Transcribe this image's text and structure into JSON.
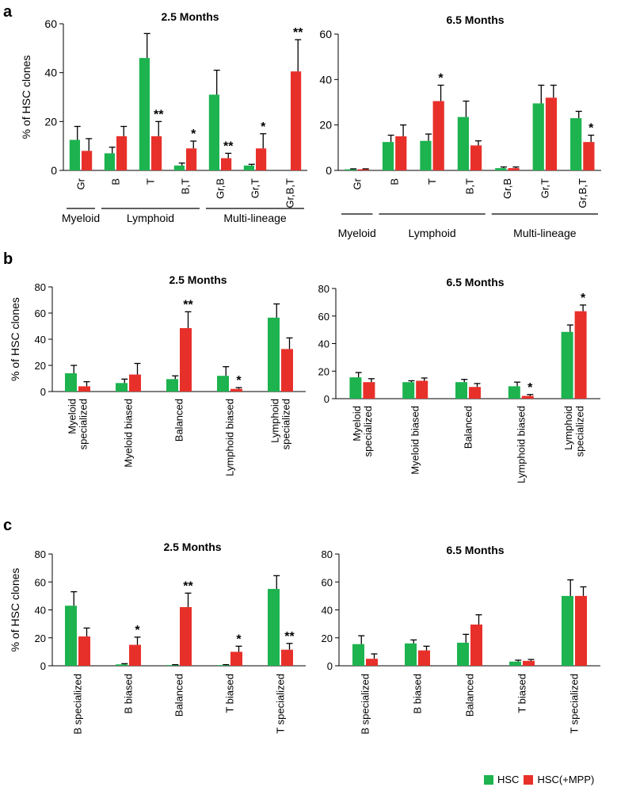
{
  "colors": {
    "hsc": "#1db34f",
    "mpp": "#e8302a"
  },
  "legend": {
    "hsc": "HSC",
    "mpp": "HSC(+MPP)"
  },
  "panel_labels": [
    "a",
    "b",
    "c"
  ],
  "chart_data": [
    {
      "id": "a1",
      "type": "bar",
      "panel": "a",
      "title": "2.5 Months",
      "ylabel": "% of HSC clones",
      "ylim": [
        0,
        60
      ],
      "yticks": [
        0,
        20,
        40,
        60
      ],
      "categories": [
        "Gr",
        "B",
        "T",
        "B,T",
        "Gr,B",
        "Gr,T",
        "Gr,B,T"
      ],
      "series": [
        {
          "name": "HSC",
          "values": [
            12.5,
            7,
            46,
            2,
            31,
            2,
            0
          ],
          "errors": [
            5.5,
            2.5,
            10,
            1,
            10,
            0.5,
            0
          ]
        },
        {
          "name": "HSC(+MPP)",
          "values": [
            8,
            14,
            14,
            9,
            5,
            9,
            40.5
          ],
          "errors": [
            5,
            4,
            6,
            3,
            2,
            6,
            13
          ]
        }
      ],
      "significance": [
        "",
        "",
        "**",
        "*",
        "**",
        "*",
        "**"
      ],
      "groups": [
        {
          "label": "Myeloid",
          "from": 0,
          "to": 0
        },
        {
          "label": "Lymphoid",
          "from": 1,
          "to": 3
        },
        {
          "label": "Multi-lineage",
          "from": 4,
          "to": 6
        }
      ]
    },
    {
      "id": "a2",
      "type": "bar",
      "panel": "a",
      "title": "6.5 Months",
      "ylabel": "",
      "ylim": [
        0,
        60
      ],
      "yticks": [
        0,
        20,
        40,
        60
      ],
      "categories": [
        "Gr",
        "B",
        "T",
        "B,T",
        "Gr,B",
        "Gr,T",
        "Gr,B,T"
      ],
      "series": [
        {
          "name": "HSC",
          "values": [
            0.5,
            12.5,
            13,
            23.5,
            1,
            29.5,
            23
          ],
          "errors": [
            0.2,
            3,
            3,
            7,
            0.5,
            8,
            3
          ]
        },
        {
          "name": "HSC(+MPP)",
          "values": [
            0.5,
            15,
            30.5,
            11,
            1,
            32,
            12.5
          ],
          "errors": [
            0.2,
            5,
            7,
            2,
            0.5,
            5.5,
            3
          ]
        }
      ],
      "significance": [
        "",
        "",
        "*",
        "",
        "",
        "",
        "*"
      ],
      "groups": [
        {
          "label": "Myeloid",
          "from": 0,
          "to": 0
        },
        {
          "label": "Lymphoid",
          "from": 1,
          "to": 3
        },
        {
          "label": "Multi-lineage",
          "from": 4,
          "to": 6
        }
      ]
    },
    {
      "id": "b1",
      "type": "bar",
      "panel": "b",
      "title": "2.5 Months",
      "ylabel": "% of HSC clones",
      "ylim": [
        0,
        80
      ],
      "yticks": [
        0,
        20,
        40,
        60,
        80
      ],
      "categories": [
        "Myeloid\nspecialized",
        "Myeloid biased",
        "Balanced",
        "Lymphoid biased",
        "Lymphoid\nspecialized"
      ],
      "series": [
        {
          "name": "HSC",
          "values": [
            14,
            6.5,
            9.5,
            12,
            56.5
          ],
          "errors": [
            6,
            3,
            2.5,
            7,
            10.5
          ]
        },
        {
          "name": "HSC(+MPP)",
          "values": [
            4,
            13,
            48.5,
            2,
            32.5
          ],
          "errors": [
            3.5,
            8.5,
            12.5,
            1,
            8.5
          ]
        }
      ],
      "significance": [
        "",
        "",
        "**",
        "*",
        ""
      ]
    },
    {
      "id": "b2",
      "type": "bar",
      "panel": "b",
      "title": "6.5 Months",
      "ylabel": "",
      "ylim": [
        0,
        80
      ],
      "yticks": [
        0,
        20,
        40,
        60,
        80
      ],
      "categories": [
        "Myeloid\nspecialized",
        "Myeloid biased",
        "Balanced",
        "Lymphoid biased",
        "Lymphoid\nspecialized"
      ],
      "series": [
        {
          "name": "HSC",
          "values": [
            15.5,
            12,
            12,
            9,
            48.5
          ],
          "errors": [
            3.5,
            1,
            2,
            3,
            5
          ]
        },
        {
          "name": "HSC(+MPP)",
          "values": [
            12,
            13,
            8.5,
            2,
            63.5
          ],
          "errors": [
            2.5,
            2,
            2.5,
            1,
            4.5
          ]
        }
      ],
      "significance": [
        "",
        "",
        "",
        "*",
        "*"
      ]
    },
    {
      "id": "c1",
      "type": "bar",
      "panel": "c",
      "title": "2.5 Months",
      "ylabel": "% of HSC clones",
      "ylim": [
        0,
        80
      ],
      "yticks": [
        0,
        20,
        40,
        60,
        80
      ],
      "categories": [
        "B specialized",
        "B biased",
        "Balanced",
        "T biased",
        "T specialized"
      ],
      "series": [
        {
          "name": "HSC",
          "values": [
            43,
            1,
            0.5,
            0.5,
            55
          ],
          "errors": [
            10,
            0.5,
            0.3,
            0.3,
            9.5
          ]
        },
        {
          "name": "HSC(+MPP)",
          "values": [
            21,
            15,
            42,
            10,
            11.5
          ],
          "errors": [
            6,
            5.5,
            10,
            4,
            4.5
          ]
        }
      ],
      "significance": [
        "",
        "*",
        "**",
        "*",
        "**"
      ]
    },
    {
      "id": "c2",
      "type": "bar",
      "panel": "c",
      "title": "6.5 Months",
      "ylabel": "",
      "ylim": [
        0,
        80
      ],
      "yticks": [
        0,
        20,
        40,
        60,
        80
      ],
      "categories": [
        "B specialized",
        "B biased",
        "Balanced",
        "T biased",
        "T specialized"
      ],
      "series": [
        {
          "name": "HSC",
          "values": [
            15.5,
            16,
            16.5,
            3,
            50
          ],
          "errors": [
            6,
            2.5,
            6,
            1,
            11.5
          ]
        },
        {
          "name": "HSC(+MPP)",
          "values": [
            5,
            11,
            29.5,
            3.5,
            50
          ],
          "errors": [
            3.5,
            3,
            7,
            1,
            6.5
          ]
        }
      ],
      "significance": [
        "",
        "",
        "",
        "",
        ""
      ]
    }
  ]
}
